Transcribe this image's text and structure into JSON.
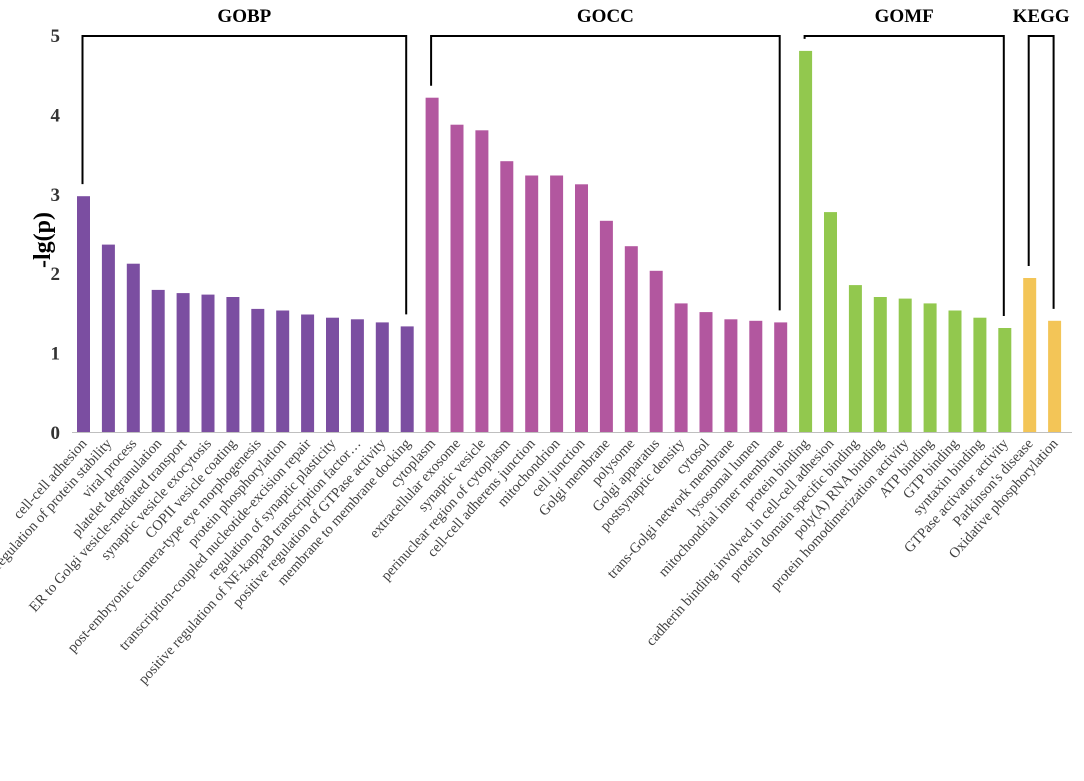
{
  "chart_data": {
    "type": "bar",
    "ylabel": "-lg(p)",
    "xlabel": "",
    "ylim": [
      0,
      5
    ],
    "yticks": [
      "0",
      "1",
      "2",
      "3",
      "4",
      "5"
    ],
    "categories": [
      "cell-cell adhesion",
      "regulation of protein stability",
      "viral process",
      "platelet degranulation",
      "ER to Golgi vesicle-mediated transport",
      "synaptic vesicle exocytosis",
      "COPII vesicle coating",
      "post-embryonic camera-type eye morphogenesis",
      "protein phosphorylation",
      "transcription-coupled nucleotide-excision repair",
      "regulation of synaptic plasticity",
      "positive regulation of NF-kappaB transcription factor…",
      "positive regulation of GTPase activity",
      "membrane to membrane docking",
      "cytoplasm",
      "extracellular exosome",
      "synaptic vesicle",
      "perinuclear region of cytoplasm",
      "cell-cell adherens junction",
      "mitochondrion",
      "cell junction",
      "Golgi membrane",
      "polysome",
      "Golgi apparatus",
      "postsynaptic density",
      "cytosol",
      "trans-Golgi network membrane",
      "lysosomal lumen",
      "mitochondrial inner membrane",
      "protein binding",
      "cadherin binding involved in cell-cell adhesion",
      "protein domain specific binding",
      "poly(A) RNA binding",
      "protein homodimerization activity",
      "ATP binding",
      "GTP binding",
      "syntaxin binding",
      "GTPase activator activity",
      "Parkinson's disease",
      "Oxidative phosphorylation"
    ],
    "values": [
      2.97,
      2.36,
      2.12,
      1.79,
      1.75,
      1.73,
      1.7,
      1.55,
      1.53,
      1.48,
      1.44,
      1.42,
      1.38,
      1.33,
      4.21,
      3.87,
      3.8,
      3.41,
      3.23,
      3.23,
      3.12,
      2.66,
      2.34,
      2.03,
      1.62,
      1.51,
      1.42,
      1.4,
      1.38,
      4.8,
      2.77,
      1.85,
      1.7,
      1.68,
      1.62,
      1.53,
      1.44,
      1.31,
      1.94,
      1.4
    ],
    "groups": [
      {
        "name": "GOBP",
        "start": 0,
        "end": 13,
        "color": "#7b4ea1"
      },
      {
        "name": "GOCC",
        "start": 14,
        "end": 28,
        "color": "#b2579f"
      },
      {
        "name": "GOMF",
        "start": 29,
        "end": 37,
        "color": "#92c84e"
      },
      {
        "name": "KEGG",
        "start": 38,
        "end": 39,
        "color": "#f3c557"
      }
    ]
  }
}
